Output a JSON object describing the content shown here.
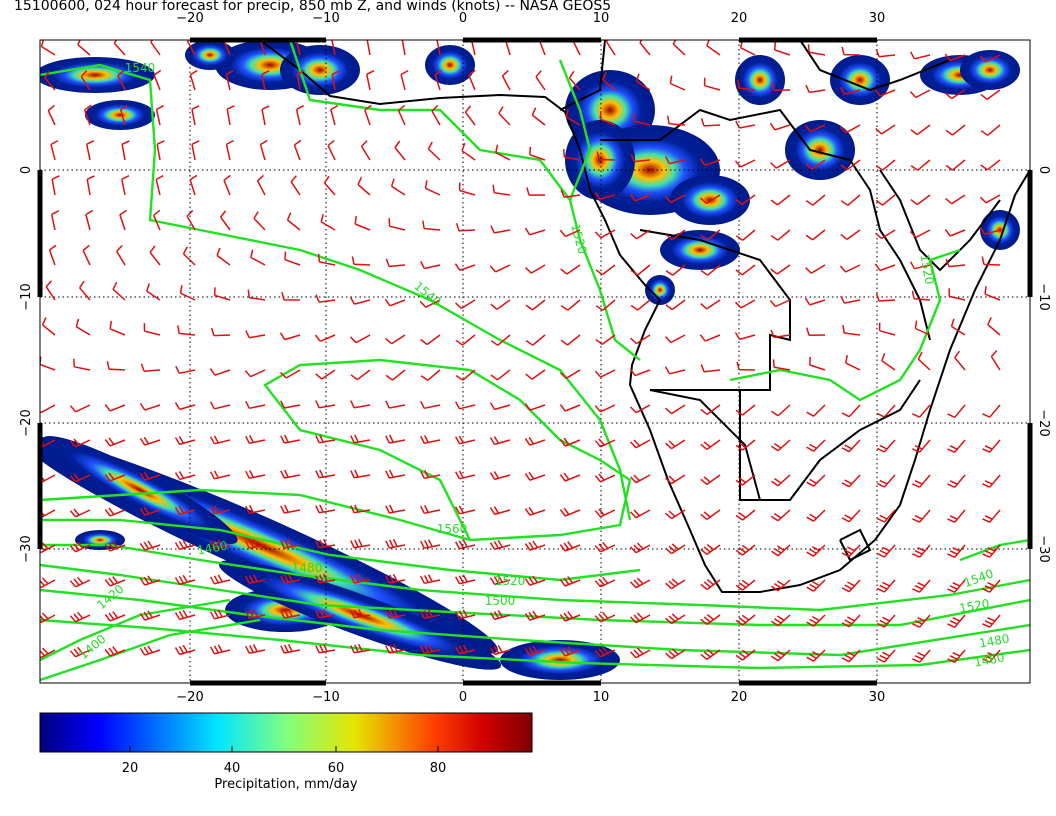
{
  "header": {
    "title": "15100600, 024 hour forecast for precip, 850 mb Z, and winds (knots) -- NASA GEOS5"
  },
  "map": {
    "top_ticks": [
      "−20",
      "−10",
      "0",
      "10",
      "20",
      "30"
    ],
    "bottom_ticks": [
      "−20",
      "−10",
      "0",
      "10",
      "20",
      "30"
    ],
    "left_ticks": [
      "0",
      "−10",
      "−20",
      "−30"
    ],
    "right_ticks": [
      "0",
      "−10",
      "−20",
      "−30"
    ],
    "contour_labels": [
      "1540",
      "1520",
      "1540",
      "1560",
      "1500",
      "1520",
      "1480",
      "1460",
      "1420",
      "1400",
      "1520",
      "1540",
      "1520",
      "1480",
      "1460"
    ]
  },
  "colorbar": {
    "ticks": [
      "20",
      "40",
      "60",
      "80"
    ],
    "label": "Precipitation, mm/day"
  }
}
